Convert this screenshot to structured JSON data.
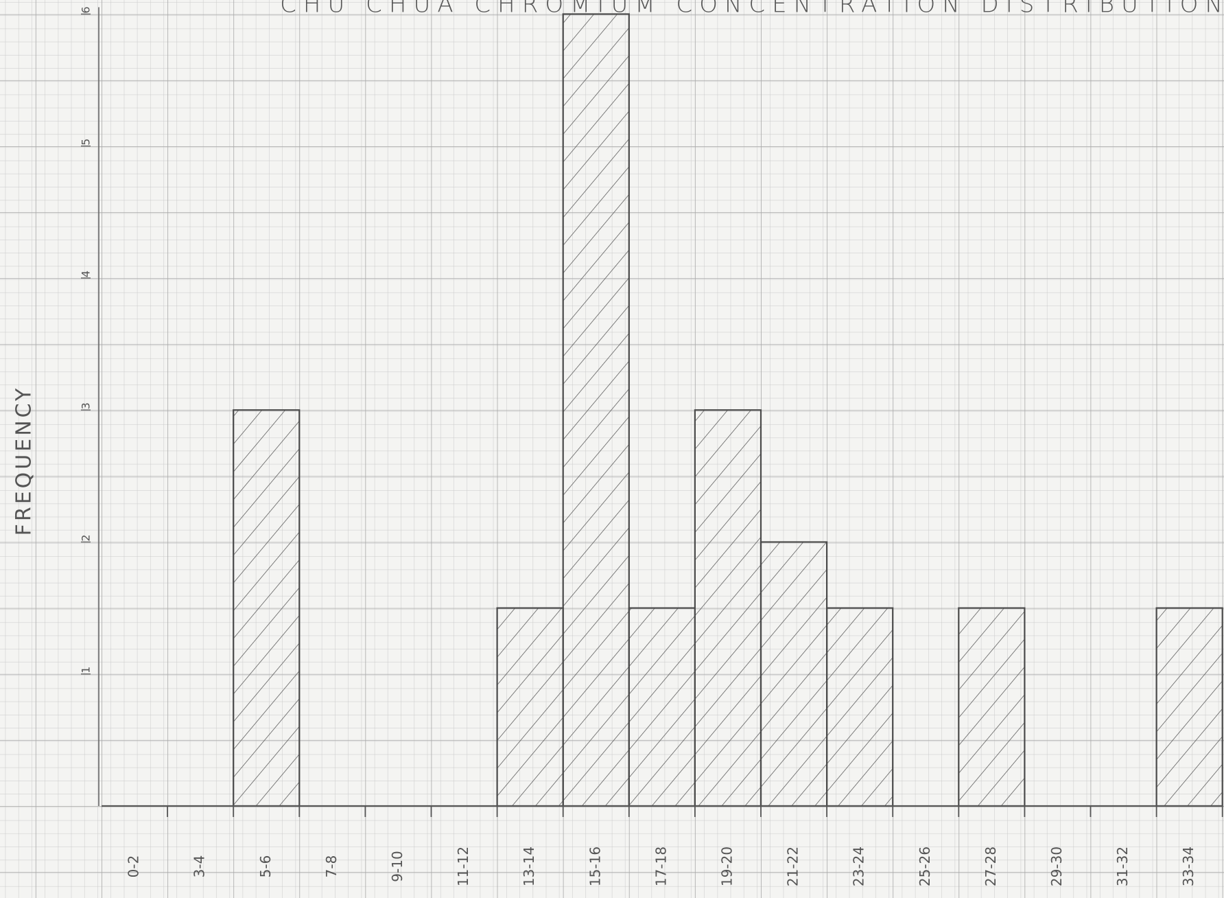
{
  "chart_data": {
    "type": "bar",
    "title": "CHU CHUA CHROMIUM CONCENTRATION DISTRIBUTION",
    "y_label": "FREQUENCY",
    "categories": [
      "0-2",
      "3-4",
      "5-6",
      "7-8",
      "9-10",
      "11-12",
      "13-14",
      "15-16",
      "17-18",
      "19-20",
      "21-22",
      "23-24",
      "25-26",
      "27-28",
      "29-30",
      "31-32",
      "33-34"
    ],
    "values": [
      0,
      0,
      3,
      0,
      0,
      0,
      1.5,
      6,
      1.5,
      3,
      2,
      1.5,
      0,
      1.5,
      0,
      0,
      1.5
    ],
    "color": "#4a4a4a",
    "ylim": [
      0,
      6
    ],
    "yticks": [
      1,
      2,
      3,
      4,
      5,
      6
    ],
    "grid": true
  }
}
